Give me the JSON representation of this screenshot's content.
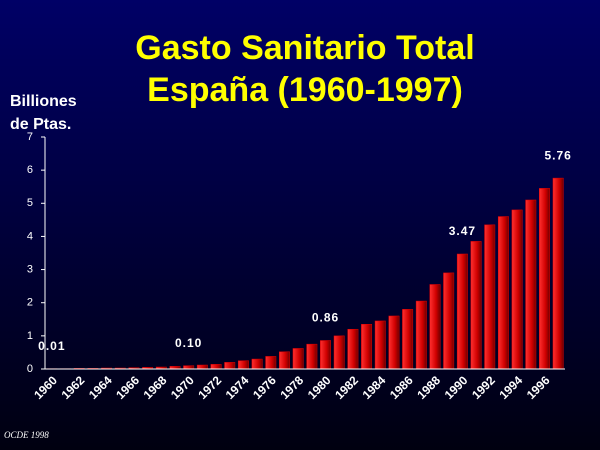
{
  "chart_data": {
    "type": "bar",
    "title": "Gasto Sanitario Total",
    "subtitle": "España (1960-1997)",
    "y_label": [
      "Billiones",
      "de Ptas."
    ],
    "note": "OCDE 1998",
    "categories": [
      "1960",
      null,
      "1962",
      null,
      "1964",
      null,
      "1966",
      null,
      "1968",
      null,
      "1970",
      null,
      "1972",
      null,
      "1974",
      null,
      "1976",
      null,
      "1978",
      null,
      "1980",
      null,
      "1982",
      null,
      "1984",
      null,
      "1986",
      null,
      "1988",
      null,
      "1990",
      null,
      "1992",
      null,
      "1994",
      null,
      "1996",
      null
    ],
    "values": [
      0.01,
      0.01,
      0.02,
      0.02,
      0.03,
      0.03,
      0.04,
      0.05,
      0.06,
      0.08,
      0.1,
      0.12,
      0.14,
      0.2,
      0.25,
      0.3,
      0.38,
      0.52,
      0.62,
      0.75,
      0.86,
      1.0,
      1.2,
      1.35,
      1.45,
      1.6,
      1.8,
      2.05,
      2.55,
      2.9,
      3.47,
      3.85,
      4.35,
      4.6,
      4.8,
      5.1,
      5.45,
      5.76
    ],
    "value_labels": [
      "0.01",
      null,
      null,
      null,
      null,
      null,
      null,
      null,
      null,
      null,
      "0.10",
      null,
      null,
      null,
      null,
      null,
      null,
      null,
      null,
      null,
      "0.86",
      null,
      null,
      null,
      null,
      null,
      null,
      null,
      null,
      null,
      "3.47",
      null,
      null,
      null,
      null,
      null,
      null,
      "5.76"
    ],
    "color": "#e00000",
    "ylim": [
      0,
      7
    ],
    "yticks": [
      0,
      1,
      2,
      3,
      4,
      5,
      6,
      7
    ],
    "grid": false
  }
}
